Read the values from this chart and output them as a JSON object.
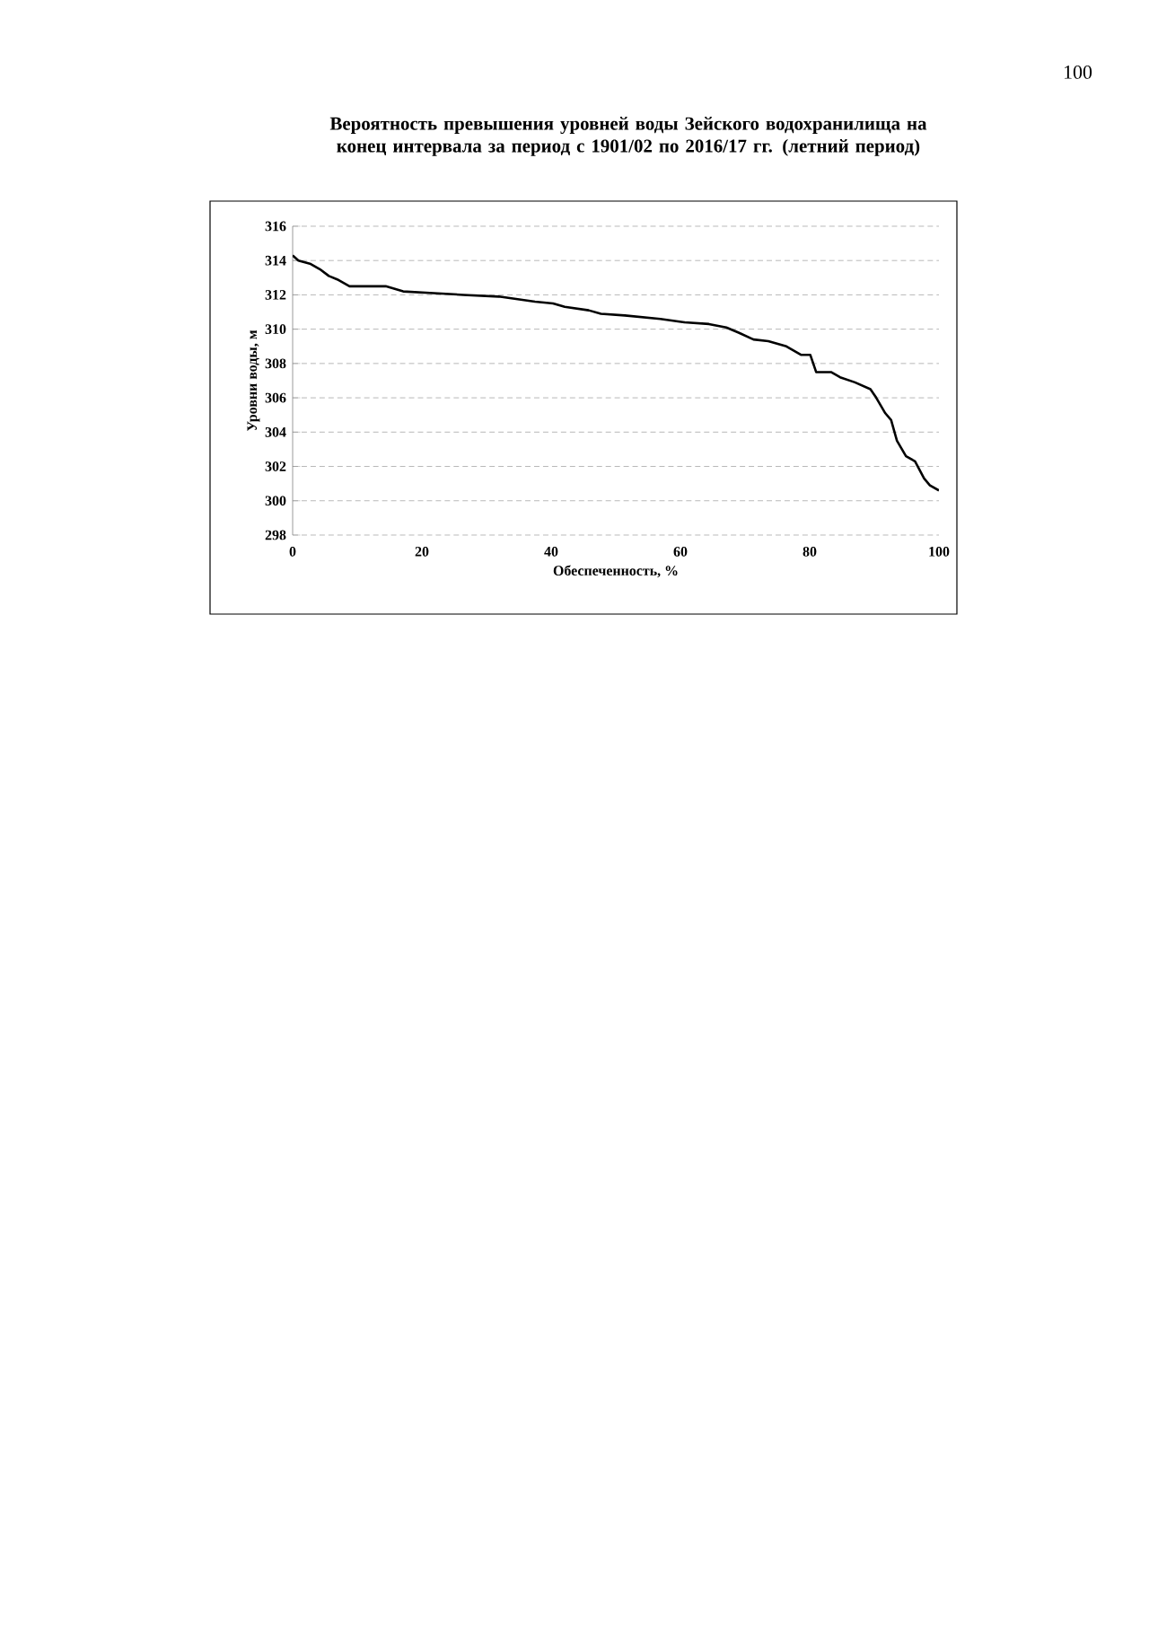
{
  "chart_data": {
    "type": "line",
    "title": "Вероятность превышения уровней воды Зейского водохранилища на конец интервала за период с 1901/02 по 2016/17 гг. (летний период)",
    "xlabel": "Обеспеченность, %",
    "ylabel": "Уровни воды, м",
    "annotations": [
      "100"
    ],
    "xlim": [
      0,
      100
    ],
    "xticks": [
      0,
      20,
      40,
      60,
      80,
      100
    ],
    "ylim": [
      298,
      316
    ],
    "yticks": [
      298,
      300,
      302,
      304,
      306,
      308,
      310,
      312,
      314,
      316
    ],
    "grid": "y",
    "marker": "none",
    "line_style": "solid",
    "series": [
      {
        "color": "#000000",
        "x": [
          0,
          0.9,
          2.8,
          4.2,
          5.6,
          6.9,
          8.8,
          14.4,
          17.1,
          21.8,
          26.4,
          31.9,
          37.5,
          40.3,
          42.1,
          45.8,
          47.7,
          51.4,
          56.9,
          60.6,
          64.4,
          67.1,
          69.0,
          71.3,
          73.6,
          76.4,
          78.7,
          80.1,
          81.0,
          83.3,
          84.7,
          87.0,
          89.4,
          90.3,
          91.7,
          92.6,
          93.5,
          94.9,
          96.3,
          97.7,
          98.6,
          100
        ],
        "values": [
          314.3,
          314.0,
          313.8,
          313.5,
          313.1,
          312.9,
          312.5,
          312.5,
          312.2,
          312.1,
          312.0,
          311.9,
          311.6,
          311.5,
          311.3,
          311.1,
          310.9,
          310.8,
          310.6,
          310.4,
          310.3,
          310.1,
          309.8,
          309.4,
          309.3,
          309.0,
          308.5,
          308.5,
          307.5,
          307.5,
          307.2,
          306.9,
          306.5,
          306.0,
          305.1,
          304.7,
          303.5,
          302.6,
          302.3,
          301.3,
          300.9,
          300.6
        ]
      }
    ]
  }
}
